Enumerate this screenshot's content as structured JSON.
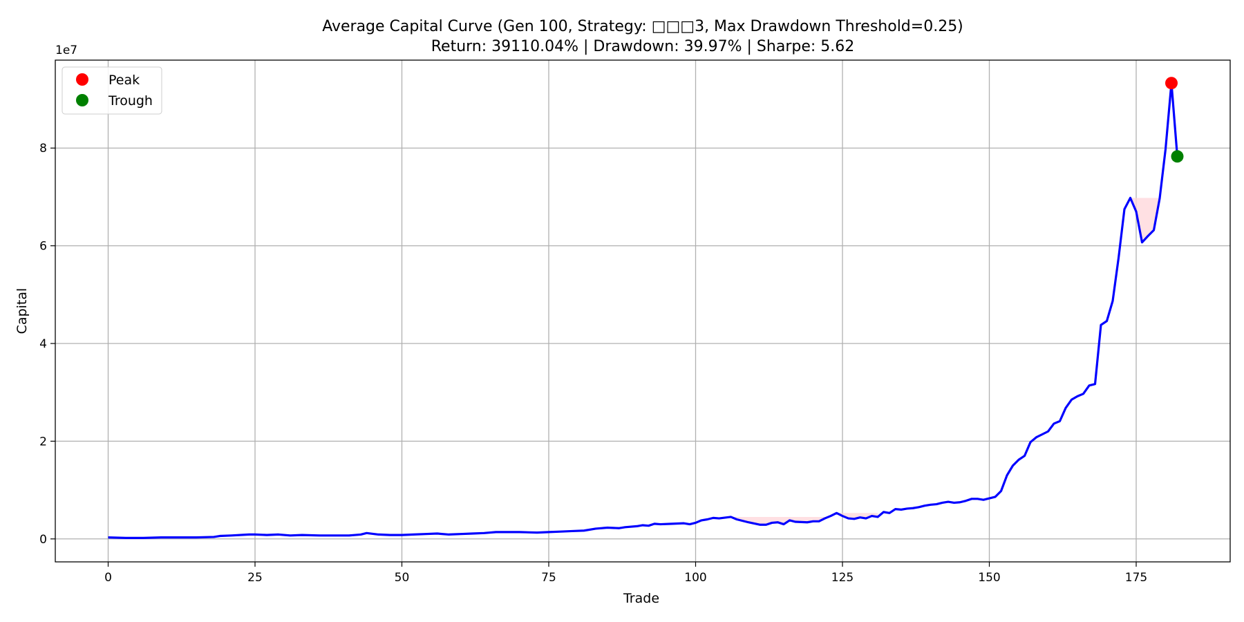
{
  "chart_data": {
    "type": "line",
    "title": "Average Capital Curve (Gen 100, Strategy: □□□3, Max Drawdown Threshold=0.25)",
    "subtitle": "Return: 39110.04% | Drawdown: 39.97% | Sharpe: 5.62",
    "xlabel": "Trade",
    "ylabel": "Capital",
    "y_offset_label": "1e7",
    "xlim": [
      -9,
      191
    ],
    "ylim": [
      -0.47,
      9.8
    ],
    "x_ticks": [
      0,
      25,
      50,
      75,
      100,
      125,
      150,
      175
    ],
    "y_ticks": [
      0,
      2,
      4,
      6,
      8
    ],
    "grid": true,
    "legend_position": "top-left",
    "colors": {
      "line": "#0000ff",
      "peak": "#ff0000",
      "trough": "#008000",
      "drawdown_fill": "#ffd6da",
      "grid": "#b0b0b0"
    },
    "series": [
      {
        "x": [
          0,
          3,
          6,
          9,
          12,
          15,
          18,
          19,
          21,
          24,
          25,
          27,
          29,
          31,
          33,
          36,
          39,
          41,
          43,
          44,
          46,
          48,
          50,
          52,
          54,
          56,
          58,
          60,
          62,
          64,
          66,
          68,
          70,
          73,
          75,
          77,
          79,
          81,
          83,
          85,
          87,
          88,
          90,
          91,
          92,
          93,
          94,
          96,
          98,
          99,
          100,
          101,
          102,
          103,
          104,
          106,
          107,
          109,
          111,
          112,
          113,
          114,
          115,
          116,
          117,
          119,
          120,
          121,
          122,
          123,
          124,
          125,
          126,
          127,
          128,
          129,
          130,
          131,
          132,
          133,
          134,
          135,
          136,
          137,
          138,
          139,
          140,
          141,
          142,
          143,
          144,
          145,
          146,
          147,
          148,
          149,
          150,
          151,
          152,
          153,
          154,
          155,
          156,
          157,
          158,
          159,
          160,
          161,
          162,
          163,
          164,
          165,
          166,
          167,
          168,
          169,
          170,
          171,
          172,
          173,
          174,
          175,
          176,
          177,
          178,
          179,
          180,
          181,
          182
        ],
        "y": [
          0.03,
          0.02,
          0.02,
          0.03,
          0.03,
          0.03,
          0.04,
          0.06,
          0.07,
          0.09,
          0.09,
          0.08,
          0.09,
          0.07,
          0.08,
          0.07,
          0.07,
          0.07,
          0.09,
          0.12,
          0.09,
          0.08,
          0.08,
          0.09,
          0.1,
          0.11,
          0.09,
          0.1,
          0.11,
          0.12,
          0.14,
          0.14,
          0.14,
          0.13,
          0.14,
          0.15,
          0.16,
          0.17,
          0.21,
          0.23,
          0.22,
          0.24,
          0.26,
          0.28,
          0.27,
          0.31,
          0.3,
          0.31,
          0.32,
          0.3,
          0.33,
          0.38,
          0.4,
          0.43,
          0.42,
          0.45,
          0.4,
          0.34,
          0.29,
          0.29,
          0.33,
          0.34,
          0.3,
          0.38,
          0.35,
          0.34,
          0.36,
          0.36,
          0.42,
          0.47,
          0.53,
          0.47,
          0.42,
          0.41,
          0.44,
          0.42,
          0.47,
          0.45,
          0.55,
          0.53,
          0.61,
          0.6,
          0.62,
          0.63,
          0.65,
          0.68,
          0.7,
          0.71,
          0.74,
          0.76,
          0.74,
          0.75,
          0.78,
          0.82,
          0.82,
          0.8,
          0.83,
          0.86,
          0.98,
          1.3,
          1.5,
          1.62,
          1.7,
          1.98,
          2.08,
          2.14,
          2.2,
          2.36,
          2.41,
          2.68,
          2.85,
          2.92,
          2.97,
          3.14,
          3.17,
          4.38,
          4.46,
          4.87,
          5.75,
          6.75,
          6.98,
          6.7,
          6.07,
          6.2,
          6.32,
          6.97,
          7.98,
          9.33,
          7.83
        ]
      }
    ],
    "drawdown_regions": [
      {
        "x_start": 106,
        "x_end": 122,
        "level": 0.45
      },
      {
        "x_start": 124,
        "x_end": 131,
        "level": 0.53
      },
      {
        "x_start": 174,
        "x_end": 179,
        "level": 6.98
      }
    ],
    "peak": {
      "label": "Peak",
      "x": 181,
      "y": 9.33
    },
    "trough": {
      "label": "Trough",
      "x": 182,
      "y": 7.83
    }
  }
}
